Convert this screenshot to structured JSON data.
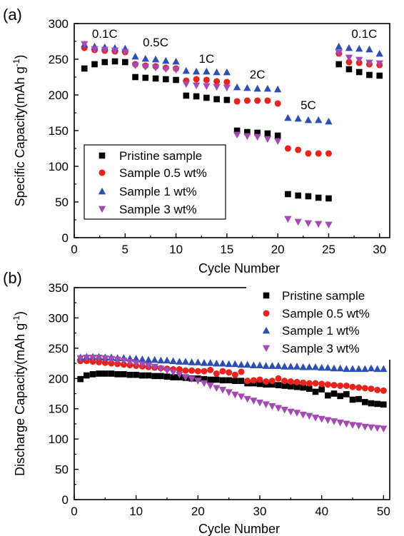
{
  "colors": {
    "pristine": "#000000",
    "s05": "#e8231d",
    "s1": "#2d4fb5",
    "s3": "#a44ab3"
  },
  "chart_data": [
    {
      "type": "scatter",
      "panel_label": "(a)",
      "xlabel": "Cycle Number",
      "ylabel": "Specific Capacity(mAh g",
      "ylabel_sup": "-1",
      "ylabel_close": ")",
      "xlim": [
        0,
        31
      ],
      "ylim": [
        0,
        300
      ],
      "xticks": [
        "0",
        "5",
        "10",
        "15",
        "20",
        "25",
        "30"
      ],
      "yticks": [
        "0",
        "50",
        "100",
        "150",
        "200",
        "250",
        "300"
      ],
      "legend_position": "lower-left",
      "rate_labels": [
        {
          "text": "0.1C",
          "x": 3.0,
          "y": 280
        },
        {
          "text": "0.5C",
          "x": 8.0,
          "y": 268
        },
        {
          "text": "1C",
          "x": 13.0,
          "y": 245
        },
        {
          "text": "2C",
          "x": 18.0,
          "y": 223
        },
        {
          "text": "5C",
          "x": 23.0,
          "y": 180
        },
        {
          "text": "0.1C",
          "x": 28.5,
          "y": 280
        }
      ],
      "x": [
        1,
        2,
        3,
        4,
        5,
        6,
        7,
        8,
        9,
        10,
        11,
        12,
        13,
        14,
        15,
        16,
        17,
        18,
        19,
        20,
        21,
        22,
        23,
        24,
        25,
        26,
        27,
        28,
        29,
        30
      ],
      "series": [
        {
          "name": "Pristine sample",
          "marker": "square",
          "color_key": "pristine",
          "values": [
            237,
            243,
            246,
            247,
            246,
            225,
            224,
            223,
            222,
            221,
            199,
            198,
            196,
            194,
            193,
            150,
            148,
            147,
            146,
            143,
            61,
            59,
            58,
            56,
            55,
            243,
            236,
            232,
            228,
            227
          ]
        },
        {
          "name": "Sample 0.5 wt%",
          "marker": "circle",
          "color_key": "s05",
          "values": [
            266,
            263,
            262,
            261,
            260,
            243,
            241,
            240,
            238,
            237,
            220,
            222,
            221,
            219,
            218,
            191,
            192,
            192,
            192,
            188,
            125,
            123,
            118,
            118,
            118,
            258,
            246,
            245,
            243,
            242
          ]
        },
        {
          "name": "Sample 1 wt%",
          "marker": "triangle-up",
          "color_key": "s1",
          "values": [
            271,
            268,
            267,
            266,
            265,
            254,
            251,
            250,
            248,
            247,
            234,
            233,
            233,
            232,
            232,
            211,
            210,
            209,
            209,
            208,
            168,
            167,
            165,
            165,
            163,
            268,
            266,
            265,
            264,
            258
          ]
        },
        {
          "name": "Sample 3 wt%",
          "marker": "triangle-down",
          "color_key": "s3",
          "values": [
            271,
            264,
            263,
            262,
            260,
            241,
            239,
            238,
            236,
            235,
            215,
            213,
            212,
            211,
            210,
            144,
            142,
            141,
            138,
            135,
            26,
            22,
            20,
            19,
            18,
            259,
            252,
            249,
            245,
            244
          ]
        }
      ]
    },
    {
      "type": "scatter",
      "panel_label": "(b)",
      "xlabel": "Cycle Number",
      "ylabel": "Discharge Capacity(mAh g",
      "ylabel_sup": "-1",
      "ylabel_close": ")",
      "xlim": [
        0,
        51
      ],
      "ylim": [
        0,
        350
      ],
      "xticks": [
        "0",
        "10",
        "20",
        "30",
        "40",
        "50"
      ],
      "yticks": [
        "0",
        "50",
        "100",
        "150",
        "200",
        "250",
        "300",
        "350"
      ],
      "legend_position": "top-right",
      "x": [
        1,
        2,
        3,
        4,
        5,
        6,
        7,
        8,
        9,
        10,
        11,
        12,
        13,
        14,
        15,
        16,
        17,
        18,
        19,
        20,
        21,
        22,
        23,
        24,
        25,
        26,
        27,
        28,
        29,
        30,
        31,
        32,
        33,
        34,
        35,
        36,
        37,
        38,
        39,
        40,
        41,
        42,
        43,
        44,
        45,
        46,
        47,
        48,
        49,
        50
      ],
      "series": [
        {
          "name": "Pristine sample",
          "marker": "square",
          "color_key": "pristine",
          "values": [
            199,
            205,
            207,
            208,
            208,
            208,
            207,
            207,
            206,
            206,
            205,
            205,
            204,
            204,
            203,
            202,
            202,
            201,
            200,
            200,
            199,
            198,
            198,
            197,
            197,
            196,
            196,
            192,
            192,
            191,
            190,
            190,
            189,
            188,
            187,
            186,
            185,
            183,
            178,
            182,
            172,
            175,
            171,
            174,
            165,
            166,
            161,
            159,
            158,
            157
          ]
        },
        {
          "name": "Sample 0.5 wt%",
          "marker": "circle",
          "color_key": "s05",
          "values": [
            229,
            229,
            228,
            227,
            226,
            225,
            224,
            223,
            222,
            221,
            220,
            219,
            218,
            217,
            216,
            215,
            215,
            213,
            213,
            212,
            212,
            214,
            208,
            212,
            210,
            206,
            211,
            196,
            197,
            198,
            195,
            196,
            200,
            196,
            195,
            194,
            193,
            192,
            192,
            191,
            190,
            189,
            188,
            188,
            186,
            185,
            184,
            183,
            181,
            180
          ]
        },
        {
          "name": "Sample 1 wt%",
          "marker": "triangle-up",
          "color_key": "s1",
          "values": [
            235,
            236,
            236,
            236,
            235,
            235,
            234,
            234,
            233,
            233,
            232,
            231,
            231,
            230,
            230,
            229,
            228,
            228,
            227,
            227,
            226,
            226,
            225,
            225,
            224,
            224,
            223,
            223,
            222,
            222,
            221,
            221,
            221,
            220,
            220,
            220,
            219,
            219,
            219,
            218,
            218,
            217,
            217,
            216,
            216,
            216,
            216,
            217,
            216,
            216
          ]
        },
        {
          "name": "Sample 3 wt%",
          "marker": "triangle-down",
          "color_key": "s3",
          "values": [
            233,
            234,
            234,
            234,
            233,
            232,
            231,
            229,
            227,
            225,
            223,
            221,
            219,
            216,
            213,
            210,
            206,
            202,
            199,
            196,
            192,
            188,
            184,
            181,
            177,
            173,
            170,
            166,
            163,
            160,
            157,
            154,
            151,
            148,
            145,
            143,
            140,
            138,
            135,
            133,
            131,
            129,
            127,
            125,
            123,
            122,
            120,
            119,
            118,
            117
          ]
        }
      ]
    }
  ]
}
